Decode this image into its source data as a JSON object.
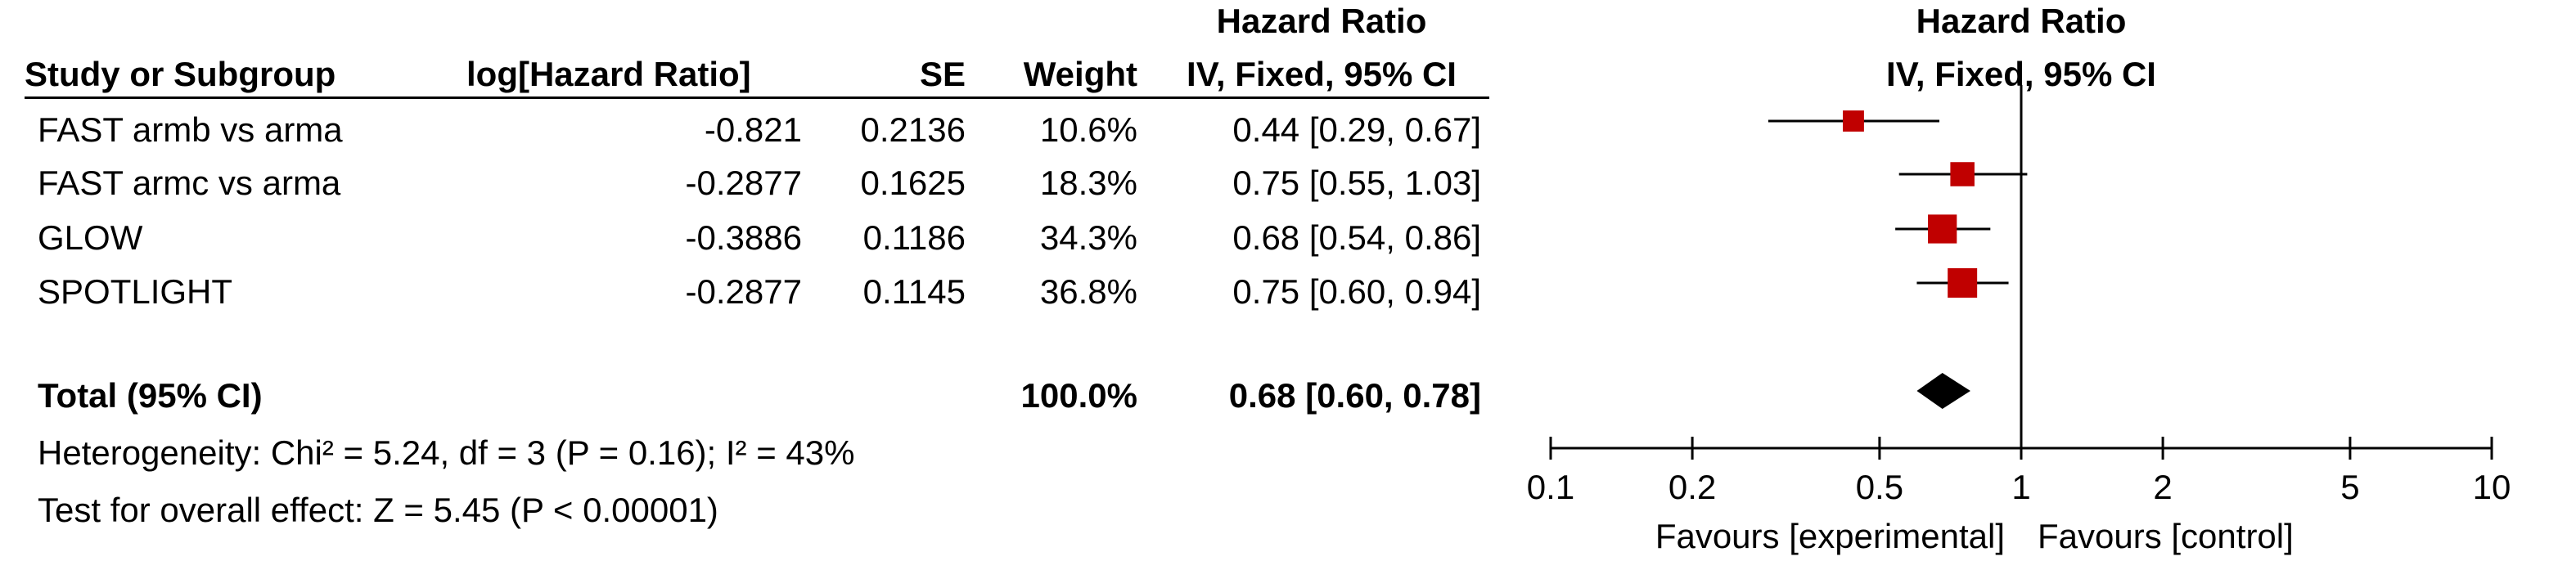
{
  "table": {
    "headers": {
      "study": "Study or Subgroup",
      "loghr": "log[Hazard Ratio]",
      "se": "SE",
      "weight": "Weight",
      "hr_top": "Hazard Ratio",
      "hr_bottom": "IV, Fixed, 95% CI",
      "plot_top": "Hazard Ratio",
      "plot_bottom": "IV, Fixed, 95% CI"
    },
    "rows": [
      {
        "study": "FAST armb vs arma",
        "loghr": "-0.821",
        "se": "0.2136",
        "weight": "10.6%",
        "ci": "0.44 [0.29, 0.67]"
      },
      {
        "study": "FAST armc vs arma",
        "loghr": "-0.2877",
        "se": "0.1625",
        "weight": "18.3%",
        "ci": "0.75 [0.55, 1.03]"
      },
      {
        "study": "GLOW",
        "loghr": "-0.3886",
        "se": "0.1186",
        "weight": "34.3%",
        "ci": "0.68 [0.54, 0.86]"
      },
      {
        "study": "SPOTLIGHT",
        "loghr": "-0.2877",
        "se": "0.1145",
        "weight": "36.8%",
        "ci": "0.75 [0.60, 0.94]"
      }
    ],
    "total": {
      "label": "Total (95% CI)",
      "weight": "100.0%",
      "ci": "0.68 [0.60, 0.78]"
    },
    "heterogeneity": "Heterogeneity: Chi² = 5.24, df = 3 (P = 0.16); I² = 43%",
    "overall_effect": "Test for overall effect: Z = 5.45 (P < 0.00001)"
  },
  "chart_data": {
    "type": "scatter",
    "title": "Hazard Ratio",
    "subtitle": "IV, Fixed, 95% CI",
    "x_scale": "log",
    "xlim": [
      0.1,
      10
    ],
    "x_ticks": [
      0.1,
      0.2,
      0.5,
      1,
      2,
      5,
      10
    ],
    "x_tick_labels": [
      "0.1",
      "0.2",
      "0.5",
      "1",
      "2",
      "5",
      "10"
    ],
    "null_line": 1,
    "left_label": "Favours [experimental]",
    "right_label": "Favours [control]",
    "marker_color": "#c00000",
    "studies": [
      {
        "name": "FAST armb vs arma",
        "hr": 0.44,
        "lower": 0.29,
        "upper": 0.67,
        "weight": 10.6
      },
      {
        "name": "FAST armc vs arma",
        "hr": 0.75,
        "lower": 0.55,
        "upper": 1.03,
        "weight": 18.3
      },
      {
        "name": "GLOW",
        "hr": 0.68,
        "lower": 0.54,
        "upper": 0.86,
        "weight": 34.3
      },
      {
        "name": "SPOTLIGHT",
        "hr": 0.75,
        "lower": 0.6,
        "upper": 0.94,
        "weight": 36.8
      }
    ],
    "pooled": {
      "hr": 0.68,
      "lower": 0.6,
      "upper": 0.78
    }
  }
}
